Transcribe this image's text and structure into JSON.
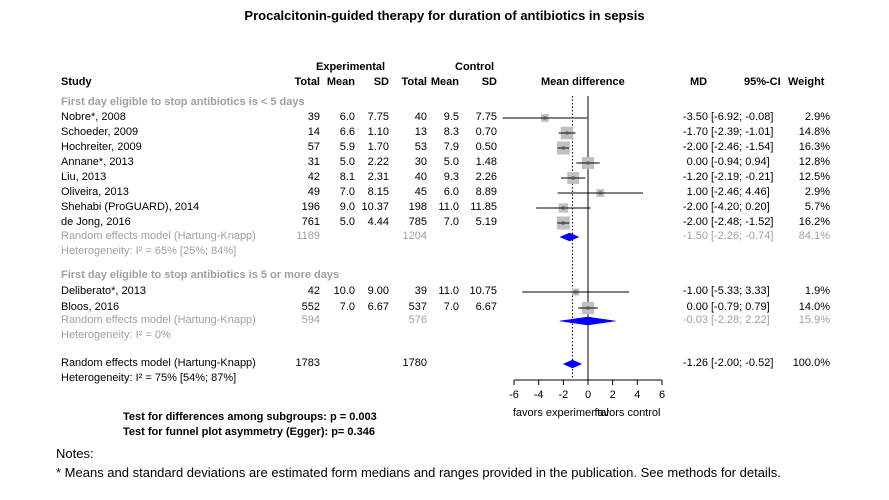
{
  "title": "Procalcitonin-guided therapy for duration of antibiotics in sepsis",
  "headers": {
    "experimental": "Experimental",
    "control": "Control",
    "study": "Study",
    "total_e": "Total",
    "mean_e": "Mean",
    "sd_e": "SD",
    "total_c": "Total",
    "mean_c": "Mean",
    "sd_c": "SD",
    "mean_difference": "Mean difference",
    "md": "MD",
    "ci": "95%-CI",
    "weight": "Weight"
  },
  "subgroups": [
    {
      "label": "First day eligible to stop antibiotics is < 5 days",
      "studies": [
        {
          "study": "Nobre*, 2008",
          "ne": "39",
          "me": "6.0",
          "se": "7.75",
          "nc": "40",
          "mc": "9.5",
          "sc": "7.75",
          "md": "-3.50",
          "ci": "[-6.92; -0.08]",
          "w": "2.9%"
        },
        {
          "study": "Schoeder, 2009",
          "ne": "14",
          "me": "6.6",
          "se": "1.10",
          "nc": "13",
          "mc": "8.3",
          "sc": "0.70",
          "md": "-1.70",
          "ci": "[-2.39; -1.01]",
          "w": "14.8%"
        },
        {
          "study": "Hochreiter, 2009",
          "ne": "57",
          "me": "5.9",
          "se": "1.70",
          "nc": "53",
          "mc": "7.9",
          "sc": "0.50",
          "md": "-2.00",
          "ci": "[-2.46; -1.54]",
          "w": "16.3%"
        },
        {
          "study": "Annane*, 2013",
          "ne": "31",
          "me": "5.0",
          "se": "2.22",
          "nc": "30",
          "mc": "5.0",
          "sc": "1.48",
          "md": "0.00",
          "ci": "[-0.94; 0.94]",
          "w": "12.8%"
        },
        {
          "study": "Liu, 2013",
          "ne": "42",
          "me": "8.1",
          "se": "2.31",
          "nc": "40",
          "mc": "9.3",
          "sc": "2.26",
          "md": "-1.20",
          "ci": "[-2.19; -0.21]",
          "w": "12.5%"
        },
        {
          "study": "Oliveira, 2013",
          "ne": "49",
          "me": "7.0",
          "se": "8.15",
          "nc": "45",
          "mc": "6.0",
          "sc": "8.89",
          "md": "1.00",
          "ci": "[-2.46; 4.46]",
          "w": "2.9%"
        },
        {
          "study": "Shehabi (ProGUARD), 2014",
          "ne": "196",
          "me": "9.0",
          "se": "10.37",
          "nc": "198",
          "mc": "11.0",
          "sc": "11.85",
          "md": "-2.00",
          "ci": "[-4.20; 0.20]",
          "w": "5.7%"
        },
        {
          "study": "de Jong, 2016",
          "ne": "761",
          "me": "5.0",
          "se": "4.44",
          "nc": "785",
          "mc": "7.0",
          "sc": "5.19",
          "md": "-2.00",
          "ci": "[-2.48; -1.52]",
          "w": "16.2%"
        }
      ],
      "model": {
        "label": "Random effects model  (Hartung-Knapp)",
        "ne": "1189",
        "nc": "1204",
        "md": "-1.50",
        "ci": "[-2.26; -0.74]",
        "w": "84.1%"
      },
      "het": "Heterogeneity: I² = 65% [25%; 84%]"
    },
    {
      "label": "First day eligible to stop antibiotics is 5 or more days",
      "studies": [
        {
          "study": "Deliberato*, 2013",
          "ne": "42",
          "me": "10.0",
          "se": "9.00",
          "nc": "39",
          "mc": "11.0",
          "sc": "10.75",
          "md": "-1.00",
          "ci": "[-5.33; 3.33]",
          "w": "1.9%"
        },
        {
          "study": "Bloos, 2016",
          "ne": "552",
          "me": "7.0",
          "se": "6.67",
          "nc": "537",
          "mc": "7.0",
          "sc": "6.67",
          "md": "0.00",
          "ci": "[-0.79; 0.79]",
          "w": "14.0%"
        }
      ],
      "model": {
        "label": "Random effects model  (Hartung-Knapp)",
        "ne": "594",
        "nc": "576",
        "md": "-0.03",
        "ci": "[-2.28; 2.22]",
        "w": "15.9%"
      },
      "het": "Heterogeneity: I² = 0%"
    }
  ],
  "overall": {
    "label": "Random effects model  (Hartung-Knapp)",
    "ne": "1783",
    "nc": "1780",
    "md": "-1.26",
    "ci": "[-2.00; -0.52]",
    "w": "100.0%",
    "het": "Heterogeneity: I² = 75% [54%; 87%]"
  },
  "tests": {
    "subgroup": "Test for differences among subgroups: p = 0.003",
    "egger": "Test for funnel plot asymmetry (Egger): p= 0.346"
  },
  "notes": {
    "heading": "Notes:",
    "text": "* Means and standard deviations are estimated form medians and ranges provided in the publication. See methods for details."
  },
  "chart_data": {
    "type": "forest",
    "xlim": [
      -6,
      6
    ],
    "xticks": [
      "-6",
      "-4",
      "-2",
      "0",
      "2",
      "4",
      "6"
    ],
    "xlabel_left": "favors experimental",
    "xlabel_right": "favors control",
    "reference_line": 0,
    "pooled_reference": -1.26,
    "studies": [
      {
        "name": "Nobre*, 2008",
        "md": -3.5,
        "lo": -6.92,
        "hi": -0.08,
        "weight": 2.9
      },
      {
        "name": "Schoeder, 2009",
        "md": -1.7,
        "lo": -2.39,
        "hi": -1.01,
        "weight": 14.8
      },
      {
        "name": "Hochreiter, 2009",
        "md": -2.0,
        "lo": -2.46,
        "hi": -1.54,
        "weight": 16.3
      },
      {
        "name": "Annane*, 2013",
        "md": 0.0,
        "lo": -0.94,
        "hi": 0.94,
        "weight": 12.8
      },
      {
        "name": "Liu, 2013",
        "md": -1.2,
        "lo": -2.19,
        "hi": -0.21,
        "weight": 12.5
      },
      {
        "name": "Oliveira, 2013",
        "md": 1.0,
        "lo": -2.46,
        "hi": 4.46,
        "weight": 2.9
      },
      {
        "name": "Shehabi (ProGUARD), 2014",
        "md": -2.0,
        "lo": -4.2,
        "hi": 0.2,
        "weight": 5.7
      },
      {
        "name": "de Jong, 2016",
        "md": -2.0,
        "lo": -2.48,
        "hi": -1.52,
        "weight": 16.2
      },
      {
        "name": "Deliberato*, 2013",
        "md": -1.0,
        "lo": -5.33,
        "hi": 3.33,
        "weight": 1.9
      },
      {
        "name": "Bloos, 2016",
        "md": 0.0,
        "lo": -0.79,
        "hi": 0.79,
        "weight": 14.0
      }
    ],
    "pooled": [
      {
        "name": "Subgroup < 5 days",
        "md": -1.5,
        "lo": -2.26,
        "hi": -0.74
      },
      {
        "name": "Subgroup 5 or more days",
        "md": -0.03,
        "lo": -2.28,
        "hi": 2.22
      },
      {
        "name": "Overall",
        "md": -1.26,
        "lo": -2.0,
        "hi": -0.52
      }
    ],
    "colors": {
      "square": "#c0c0c0",
      "diamond": "#0000ff",
      "line": "#000000"
    }
  }
}
